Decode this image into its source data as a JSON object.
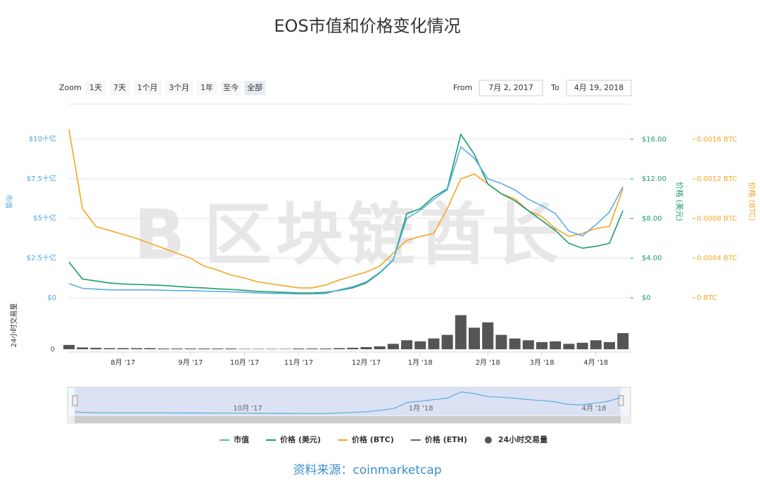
{
  "chart_data": {
    "type": "line",
    "title": "EOS市值和价格变化情况",
    "source": "资料来源：coinmarketcap",
    "watermark": "区块链酋长",
    "zoom": {
      "label": "Zoom",
      "buttons": [
        "1天",
        "7天",
        "1个月",
        "3个月",
        "1年",
        "至今",
        "全部"
      ],
      "from_label": "From",
      "from": "7月 2, 2017",
      "to_label": "To",
      "to": "4月 19, 2018"
    },
    "categories": [
      null,
      null,
      null,
      null,
      "8月 '17",
      null,
      null,
      null,
      null,
      "9月 '17",
      null,
      null,
      null,
      "10月 '17",
      null,
      null,
      null,
      "11月 '17",
      null,
      null,
      null,
      null,
      "12月 '17",
      null,
      null,
      null,
      "1月 '18",
      null,
      null,
      null,
      null,
      "2月 '18",
      null,
      null,
      null,
      "3月 '18",
      null,
      null,
      null,
      "4月 '18",
      null,
      null
    ],
    "navigator_labels": [
      {
        "index": 13,
        "label": "10月 '17"
      },
      {
        "index": 26,
        "label": "1月 '18"
      },
      {
        "index": 39,
        "label": "4月 '18"
      }
    ],
    "y_label": "市值",
    "y2_label": "价格 (美元)",
    "y3_label": "价格 (BTC)",
    "vol_label": "24小时交易量",
    "ylim": [
      0,
      12.1
    ],
    "yticks": [
      {
        "value": 0,
        "label": "$0"
      },
      {
        "value": 2.5,
        "label": "$2.5十亿"
      },
      {
        "value": 5,
        "label": "$5十亿"
      },
      {
        "value": 7.5,
        "label": "$7.5十亿"
      },
      {
        "value": 10,
        "label": "$10十亿"
      }
    ],
    "y2lim": [
      0,
      19.4
    ],
    "y2ticks": [
      {
        "value": 0,
        "label": "$0"
      },
      {
        "value": 4,
        "label": "$4.00"
      },
      {
        "value": 8,
        "label": "$8.00"
      },
      {
        "value": 12,
        "label": "$12.00"
      },
      {
        "value": 16,
        "label": "$16.00"
      }
    ],
    "y3lim": [
      0,
      0.00194
    ],
    "y3ticks": [
      {
        "value": 0,
        "label": "0 BTC"
      },
      {
        "value": 0.0004,
        "label": "0.0004 BTC"
      },
      {
        "value": 0.0008,
        "label": "0.0008 BTC"
      },
      {
        "value": 0.0012,
        "label": "0.0012 BTC"
      },
      {
        "value": 0.0016,
        "label": "0.0016 BTC"
      }
    ],
    "vol_ylim": [
      0,
      11
    ],
    "vol_ticks": [
      0
    ],
    "grid": true,
    "series": [
      {
        "name": "市值",
        "color": "#5aaee0",
        "axis": "y",
        "values": [
          0.9,
          0.6,
          0.55,
          0.5,
          0.5,
          0.5,
          0.5,
          0.48,
          0.45,
          0.45,
          0.42,
          0.4,
          0.38,
          0.35,
          0.3,
          0.28,
          0.27,
          0.25,
          0.25,
          0.27,
          0.5,
          0.7,
          1.0,
          1.6,
          2.4,
          5.0,
          5.5,
          6.2,
          6.8,
          9.5,
          8.8,
          7.5,
          7.2,
          6.8,
          6.2,
          5.8,
          5.3,
          4.2,
          3.9,
          4.6,
          5.4,
          7.0
        ]
      },
      {
        "name": "价格 (美元)",
        "color": "#1b9c6e",
        "axis": "y2",
        "values": [
          3.6,
          1.9,
          1.7,
          1.5,
          1.4,
          1.35,
          1.3,
          1.25,
          1.15,
          1.05,
          1.0,
          0.9,
          0.85,
          0.75,
          0.65,
          0.6,
          0.55,
          0.5,
          0.5,
          0.55,
          0.75,
          1.0,
          1.5,
          2.5,
          3.8,
          8.5,
          9.0,
          10.2,
          11.0,
          16.5,
          14.5,
          11.5,
          10.5,
          9.8,
          8.8,
          7.8,
          6.8,
          5.5,
          5.0,
          5.2,
          5.5,
          8.8
        ]
      },
      {
        "name": "价格 (BTC)",
        "color": "#f5a623",
        "axis": "y3",
        "values": [
          0.0017,
          0.0009,
          0.00072,
          0.00068,
          0.00064,
          0.0006,
          0.00055,
          0.0005,
          0.00045,
          0.0004,
          0.00032,
          0.00028,
          0.00023,
          0.0002,
          0.00016,
          0.00014,
          0.00012,
          0.0001,
          0.0001,
          0.00013,
          0.00018,
          0.00022,
          0.00026,
          0.00032,
          0.00045,
          0.00058,
          0.00062,
          0.00065,
          0.0009,
          0.0012,
          0.00125,
          0.00115,
          0.00105,
          0.001,
          0.00088,
          0.00082,
          0.0007,
          0.00062,
          0.00065,
          0.0007,
          0.00072,
          0.0011
        ]
      },
      {
        "name": "价格 (ETH)",
        "color": "#666666",
        "axis": "y3"
      },
      {
        "name": "24小时交易量",
        "color": "#555555",
        "axis": "vol",
        "kind": "bar",
        "values": [
          1.2,
          0.5,
          0.4,
          0.3,
          0.3,
          0.3,
          0.3,
          0.2,
          0.2,
          0.2,
          0.2,
          0.2,
          0.2,
          0.1,
          0.1,
          0.1,
          0.1,
          0.2,
          0.2,
          0.2,
          0.3,
          0.4,
          0.6,
          0.8,
          1.5,
          2.5,
          2.2,
          3.0,
          4.0,
          9.5,
          6.0,
          7.5,
          4.0,
          3.0,
          2.5,
          2.0,
          2.2,
          1.5,
          1.8,
          2.5,
          2.0,
          4.5
        ]
      }
    ]
  }
}
